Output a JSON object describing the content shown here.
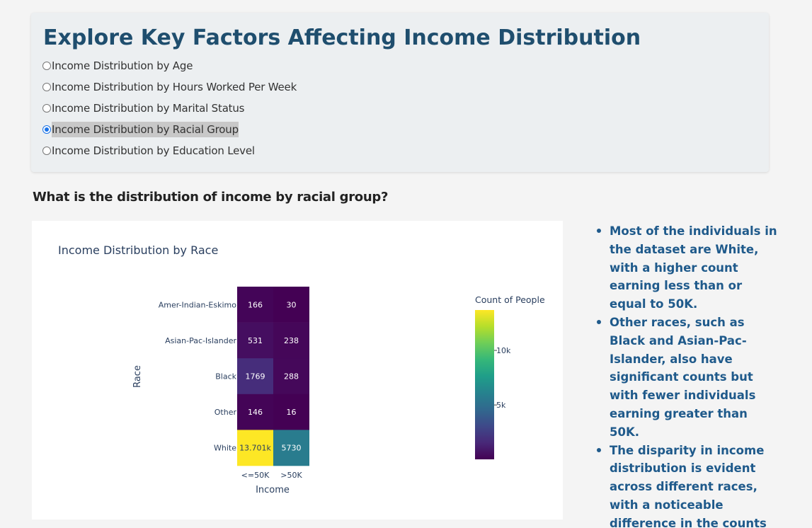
{
  "header": {
    "title": "Explore Key Factors Affecting Income Distribution"
  },
  "options": [
    {
      "label": "Income Distribution by Age",
      "selected": false
    },
    {
      "label": "Income Distribution by Hours Worked Per Week",
      "selected": false
    },
    {
      "label": "Income Distribution by Marital Status",
      "selected": false
    },
    {
      "label": "Income Distribution by Racial Group",
      "selected": true
    },
    {
      "label": "Income Distribution by Education Level",
      "selected": false
    }
  ],
  "question": "What is the distribution of income by racial group?",
  "chart_data": {
    "type": "heatmap",
    "title": "Income Distribution by Race",
    "xlabel": "Income",
    "ylabel": "Race",
    "x": [
      "<=50K",
      ">50K"
    ],
    "y": [
      "Amer-Indian-Eskimo",
      "Asian-Pac-Islander",
      "Black",
      "Other",
      "White"
    ],
    "z": [
      [
        166,
        30
      ],
      [
        531,
        238
      ],
      [
        1769,
        288
      ],
      [
        146,
        16
      ],
      [
        13701,
        5730
      ]
    ],
    "cell_labels": [
      [
        "166",
        "30"
      ],
      [
        "531",
        "238"
      ],
      [
        "1769",
        "288"
      ],
      [
        "146",
        "16"
      ],
      [
        "13.701k",
        "5730"
      ]
    ],
    "colorscale": "Viridis",
    "zmin": 16,
    "zmax": 13701,
    "colorbar": {
      "title": "Count of People",
      "ticks": [
        5000,
        10000
      ],
      "ticklabels": [
        "5k",
        "10k"
      ]
    }
  },
  "insights": [
    "Most of the individuals in the dataset are White, with a higher count earning less than or equal to 50K.",
    "Other races, such as Black and Asian-Pac-Islander, also have significant counts but with fewer individuals earning greater than 50K.",
    "The disparity in income distribution is evident across different races, with a noticeable difference in the counts of higher earners."
  ],
  "colors": {
    "title": "#1f4e6e",
    "insights": "#1f5a8b",
    "radio_selected": "#1a73e8"
  }
}
